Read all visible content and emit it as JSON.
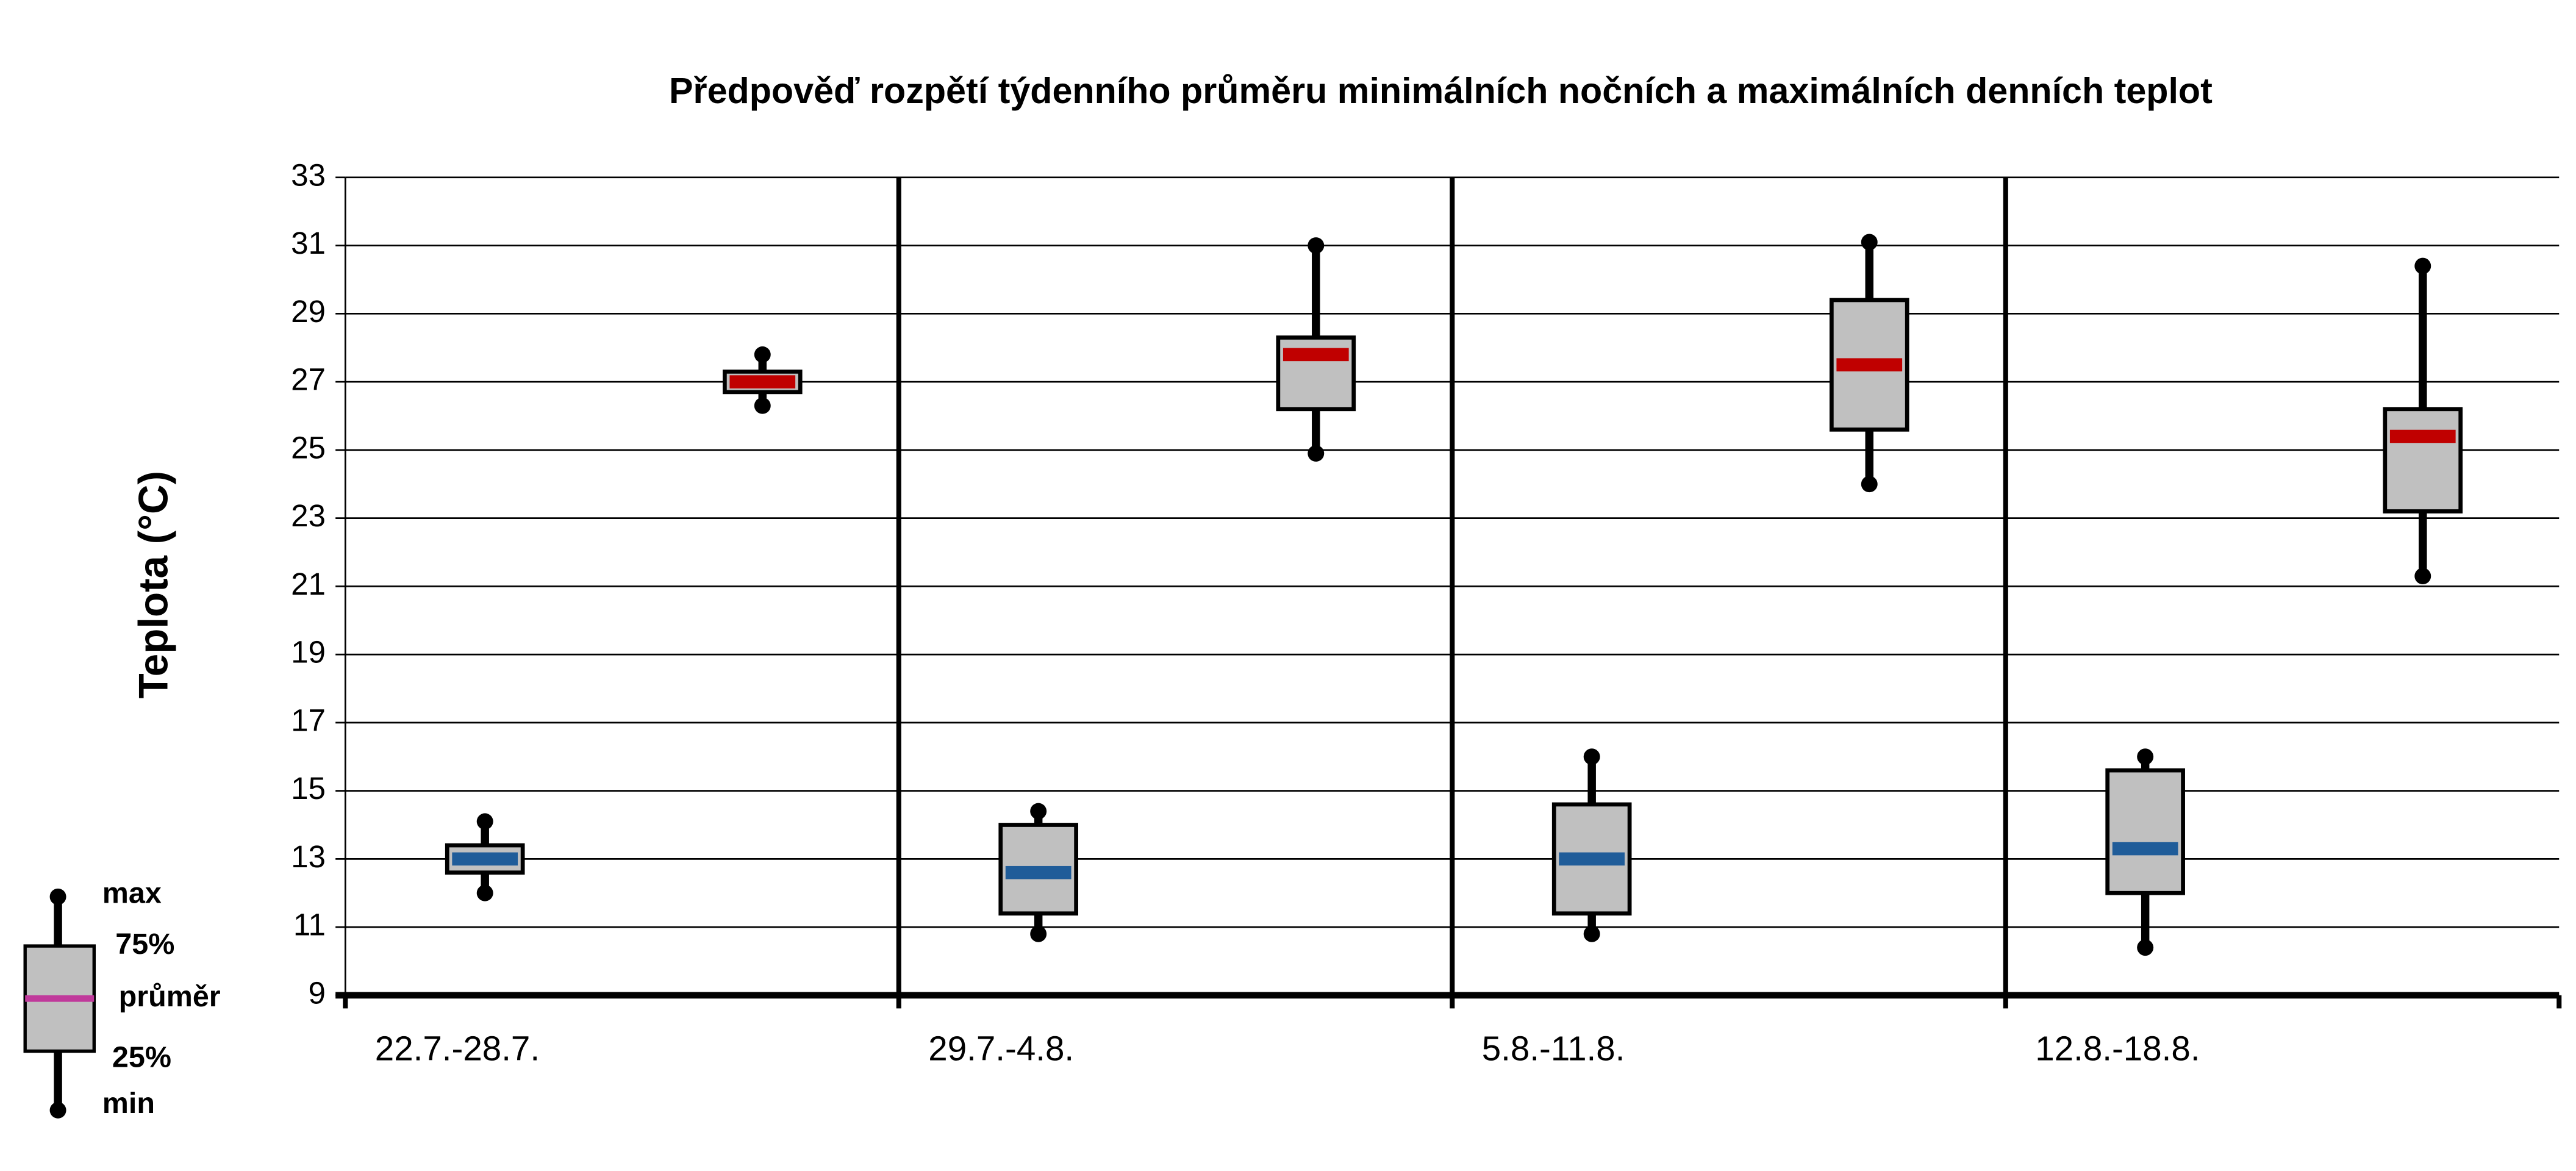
{
  "chart_data": {
    "type": "boxplot",
    "title": "Předpověď rozpětí týdenního průměru minimálních nočních a maximálních denních teplot",
    "y_label": "Teplota (°C)",
    "categories": [
      "22.7.-28.7.",
      "29.7.-4.8.",
      "5.8.-11.8.",
      "12.8.-18.8."
    ],
    "ylim": [
      9,
      33
    ],
    "yticks": [
      9,
      11,
      13,
      15,
      17,
      19,
      21,
      23,
      25,
      27,
      29,
      31,
      33
    ],
    "grid": true,
    "box_color": "#c0c0c0",
    "series": [
      {
        "color": "#1f5c99",
        "min": [
          12.0,
          10.8,
          10.8,
          10.4
        ],
        "q1": [
          12.6,
          11.4,
          11.4,
          12.0
        ],
        "mean": [
          13.0,
          12.6,
          13.0,
          13.3
        ],
        "q3": [
          13.4,
          14.0,
          14.6,
          15.6
        ],
        "max": [
          14.1,
          14.4,
          16.0,
          16.0
        ]
      },
      {
        "color": "#c00000",
        "min": [
          26.3,
          24.9,
          24.0,
          21.3
        ],
        "q1": [
          26.7,
          26.2,
          25.6,
          23.2
        ],
        "mean": [
          27.0,
          27.8,
          27.5,
          25.4
        ],
        "q3": [
          27.3,
          28.3,
          29.4,
          26.2
        ],
        "max": [
          27.8,
          31.0,
          31.1,
          30.4
        ]
      }
    ],
    "legend_labels": {
      "max": "max",
      "q3": "75%",
      "mean": "průměr",
      "q1": "25%",
      "min": "min"
    }
  }
}
